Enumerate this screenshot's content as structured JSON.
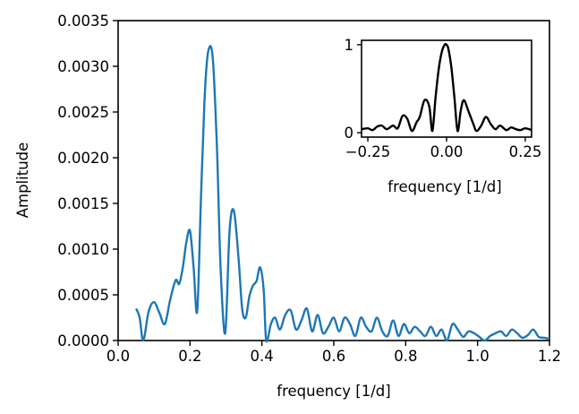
{
  "chart_data": [
    {
      "type": "line",
      "title": "",
      "xlabel": "frequency [1/d]",
      "ylabel": "Amplitude",
      "xlim": [
        0.0,
        1.2
      ],
      "ylim": [
        0.0,
        0.0035
      ],
      "xticks": [
        "0.0",
        "0.2",
        "0.4",
        "0.6",
        "0.8",
        "1.0",
        "1.2"
      ],
      "yticks": [
        "0.0000",
        "0.0005",
        "0.0010",
        "0.0015",
        "0.0020",
        "0.0025",
        "0.0030",
        "0.0035"
      ],
      "grid": false,
      "series": [
        {
          "color": "#1f77b4",
          "x": [
            0.05,
            0.06,
            0.07,
            0.085,
            0.1,
            0.115,
            0.13,
            0.145,
            0.16,
            0.17,
            0.18,
            0.19,
            0.2,
            0.21,
            0.22,
            0.23,
            0.24,
            0.25,
            0.263,
            0.275,
            0.285,
            0.298,
            0.31,
            0.322,
            0.335,
            0.345,
            0.355,
            0.365,
            0.375,
            0.385,
            0.395,
            0.405,
            0.412,
            0.425,
            0.437,
            0.45,
            0.465,
            0.48,
            0.495,
            0.51,
            0.525,
            0.54,
            0.555,
            0.57,
            0.585,
            0.6,
            0.615,
            0.63,
            0.645,
            0.66,
            0.675,
            0.69,
            0.705,
            0.72,
            0.735,
            0.75,
            0.765,
            0.78,
            0.795,
            0.81,
            0.825,
            0.84,
            0.855,
            0.87,
            0.885,
            0.9,
            0.915,
            0.93,
            0.945,
            0.96,
            0.975,
            0.99,
            1.005,
            1.02,
            1.035,
            1.05,
            1.065,
            1.08,
            1.095,
            1.11,
            1.125,
            1.14,
            1.155,
            1.17,
            1.185,
            1.2
          ],
          "y": [
            0.00035,
            0.00025,
            0.0,
            0.00032,
            0.00042,
            0.0003,
            0.00018,
            0.00045,
            0.00066,
            0.00062,
            0.0008,
            0.00108,
            0.0012,
            0.0008,
            0.00032,
            0.0015,
            0.0026,
            0.00315,
            0.0031,
            0.0021,
            0.0008,
            8e-05,
            0.0012,
            0.00142,
            0.0009,
            0.00035,
            0.00025,
            0.00048,
            0.0006,
            0.00065,
            0.0008,
            0.00055,
            0.0,
            0.00018,
            0.00025,
            0.00012,
            0.00028,
            0.00033,
            0.00012,
            0.00022,
            0.00035,
            0.0001,
            0.00028,
            8e-05,
            0.00015,
            0.00025,
            0.0001,
            0.00025,
            0.00018,
            5e-05,
            0.00025,
            0.00015,
            0.0001,
            0.00025,
            0.0001,
            5e-05,
            0.00022,
            5e-05,
            0.00018,
            8e-05,
            0.00015,
            0.0001,
            5e-05,
            0.00015,
            5e-05,
            0.00012,
            0.0,
            0.00018,
            0.00012,
            4e-05,
            0.0001,
            8e-05,
            4e-05,
            0.0,
            5e-05,
            8e-05,
            0.0001,
            5e-05,
            0.00012,
            8e-05,
            3e-05,
            6e-05,
            0.00012,
            4e-05,
            3e-05,
            2e-05
          ]
        }
      ]
    },
    {
      "type": "line",
      "title": "",
      "xlabel": "frequency [1/d]",
      "ylabel": "",
      "xlim": [
        -0.27,
        0.27
      ],
      "ylim": [
        -0.05,
        1.05
      ],
      "xticks": [
        "−0.25",
        "0.00",
        "0.25"
      ],
      "yticks": [
        "0",
        "1"
      ],
      "grid": false,
      "series": [
        {
          "color": "#000000",
          "x": [
            -0.27,
            -0.25,
            -0.235,
            -0.22,
            -0.205,
            -0.19,
            -0.17,
            -0.155,
            -0.14,
            -0.125,
            -0.11,
            -0.095,
            -0.085,
            -0.07,
            -0.055,
            -0.045,
            -0.035,
            -0.025,
            -0.015,
            -0.006,
            0.0,
            0.006,
            0.015,
            0.025,
            0.035,
            0.045,
            0.055,
            0.07,
            0.085,
            0.095,
            0.11,
            0.125,
            0.14,
            0.155,
            0.17,
            0.19,
            0.205,
            0.22,
            0.235,
            0.25,
            0.27
          ],
          "y": [
            0.04,
            0.05,
            0.03,
            0.07,
            0.08,
            0.04,
            0.08,
            0.05,
            0.19,
            0.16,
            0.02,
            0.12,
            0.18,
            0.37,
            0.3,
            0.02,
            0.4,
            0.72,
            0.92,
            1.0,
            1.0,
            0.95,
            0.75,
            0.4,
            0.02,
            0.25,
            0.37,
            0.24,
            0.1,
            0.02,
            0.08,
            0.18,
            0.1,
            0.04,
            0.08,
            0.03,
            0.06,
            0.04,
            0.03,
            0.05,
            0.03
          ]
        }
      ]
    }
  ]
}
